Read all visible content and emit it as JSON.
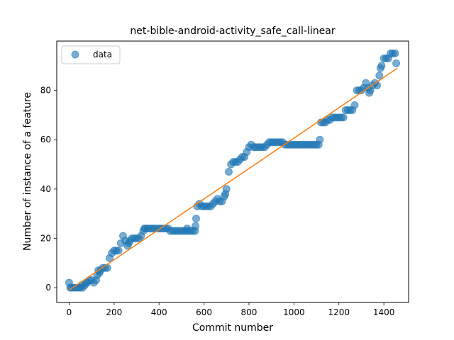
{
  "chart_data": {
    "type": "scatter",
    "title": "net-bible-android-activity_safe_call-linear",
    "xlabel": "Commit number",
    "ylabel": "Number of instance of a feature",
    "xlim": [
      -55,
      1510
    ],
    "ylim": [
      -6,
      100
    ],
    "xticks": [
      0,
      200,
      400,
      600,
      800,
      1000,
      1200,
      1400
    ],
    "yticks": [
      0,
      20,
      40,
      60,
      80
    ],
    "grid": false,
    "legend": {
      "position": "top-left",
      "entries": [
        "data"
      ]
    },
    "colors": {
      "data": "#1f77b4",
      "fit": "#ff7f0e"
    },
    "series": [
      {
        "name": "data",
        "kind": "points",
        "x": [
          0,
          5,
          10,
          20,
          30,
          40,
          50,
          55,
          60,
          70,
          75,
          80,
          90,
          100,
          110,
          120,
          125,
          130,
          135,
          140,
          150,
          160,
          170,
          180,
          190,
          200,
          210,
          220,
          230,
          240,
          250,
          260,
          265,
          270,
          280,
          290,
          300,
          310,
          320,
          330,
          335,
          340,
          350,
          360,
          370,
          380,
          390,
          400,
          410,
          420,
          430,
          440,
          450,
          460,
          470,
          480,
          490,
          500,
          510,
          520,
          525,
          530,
          540,
          550,
          560,
          562,
          565,
          570,
          580,
          590,
          600,
          610,
          620,
          630,
          640,
          650,
          660,
          670,
          680,
          690,
          695,
          700,
          710,
          720,
          730,
          740,
          750,
          760,
          770,
          780,
          790,
          800,
          810,
          820,
          830,
          840,
          850,
          860,
          870,
          880,
          890,
          900,
          910,
          920,
          930,
          940,
          950,
          960,
          970,
          980,
          990,
          1000,
          1010,
          1020,
          1030,
          1040,
          1050,
          1060,
          1070,
          1080,
          1090,
          1100,
          1110,
          1115,
          1120,
          1130,
          1140,
          1150,
          1160,
          1170,
          1180,
          1190,
          1200,
          1210,
          1220,
          1230,
          1240,
          1250,
          1260,
          1270,
          1280,
          1290,
          1300,
          1310,
          1320,
          1330,
          1335,
          1340,
          1350,
          1360,
          1370,
          1380,
          1385,
          1390,
          1400,
          1410,
          1420,
          1430,
          1440,
          1450,
          1455
        ],
        "y": [
          2,
          0,
          0,
          0,
          0,
          0,
          0,
          1,
          0,
          1,
          2,
          2,
          3,
          3,
          2,
          3,
          5,
          7,
          6,
          7,
          8,
          8,
          8,
          12,
          14,
          15,
          15,
          15,
          18,
          21,
          19,
          17,
          18,
          19,
          20,
          20,
          20,
          20,
          21,
          23,
          24,
          24,
          24,
          24,
          24,
          24,
          24,
          24,
          24,
          24,
          24,
          24,
          23,
          23,
          23,
          23,
          23,
          23,
          23,
          23,
          24,
          23,
          23,
          23,
          23,
          25,
          28,
          33,
          34,
          33,
          33,
          33,
          33,
          33,
          34,
          35,
          36,
          35,
          35,
          37,
          38,
          40,
          47,
          50,
          51,
          51,
          51,
          52,
          53,
          53,
          55,
          57,
          58,
          57,
          57,
          57,
          57,
          57,
          57,
          58,
          59,
          59,
          59,
          59,
          59,
          59,
          59,
          58,
          58,
          58,
          58,
          58,
          58,
          58,
          58,
          58,
          58,
          58,
          58,
          58,
          58,
          58,
          58,
          60,
          67,
          67,
          67,
          68,
          68,
          69,
          69,
          69,
          69,
          69,
          69,
          72,
          72,
          72,
          72,
          74,
          80,
          80,
          80,
          81,
          83,
          81,
          79,
          80,
          82,
          83,
          82,
          86,
          89,
          90,
          93,
          93,
          93,
          95,
          95,
          95,
          91
        ]
      },
      {
        "name": "",
        "kind": "line",
        "x": [
          0,
          1460
        ],
        "y": [
          -1,
          89
        ]
      }
    ]
  }
}
